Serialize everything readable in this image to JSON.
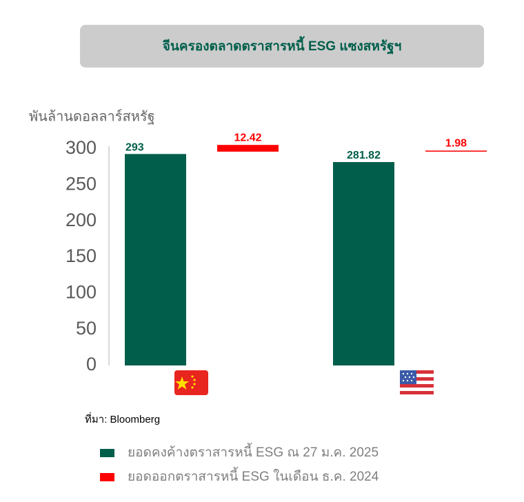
{
  "chart_data": {
    "type": "bar",
    "title": "จีนครองตลาดตราสารหนี้ ESG แซงสหรัฐฯ",
    "y_label": "พันล้านดอลลาร์สหรัฐ",
    "source": "ที่มา: Bloomberg",
    "categories": [
      null,
      null
    ],
    "series": [
      {
        "name": "ยอดคงค้างตราสารหนี้ ESG ณ 27 ม.ค. 2025",
        "color": "#005e4b",
        "values": [
          293,
          281.82
        ]
      },
      {
        "name": "ยอดออกตราสารหนี้ ESG ในเดือน ธ.ค. 2024",
        "color": "#ff0000",
        "values": [
          12.42,
          1.98
        ],
        "axis": "y2"
      }
    ],
    "ylim": [
      0,
      300
    ],
    "yticks": [
      0,
      50,
      100,
      150,
      200,
      250,
      300
    ],
    "y2lim": [
      -395,
      5
    ]
  }
}
